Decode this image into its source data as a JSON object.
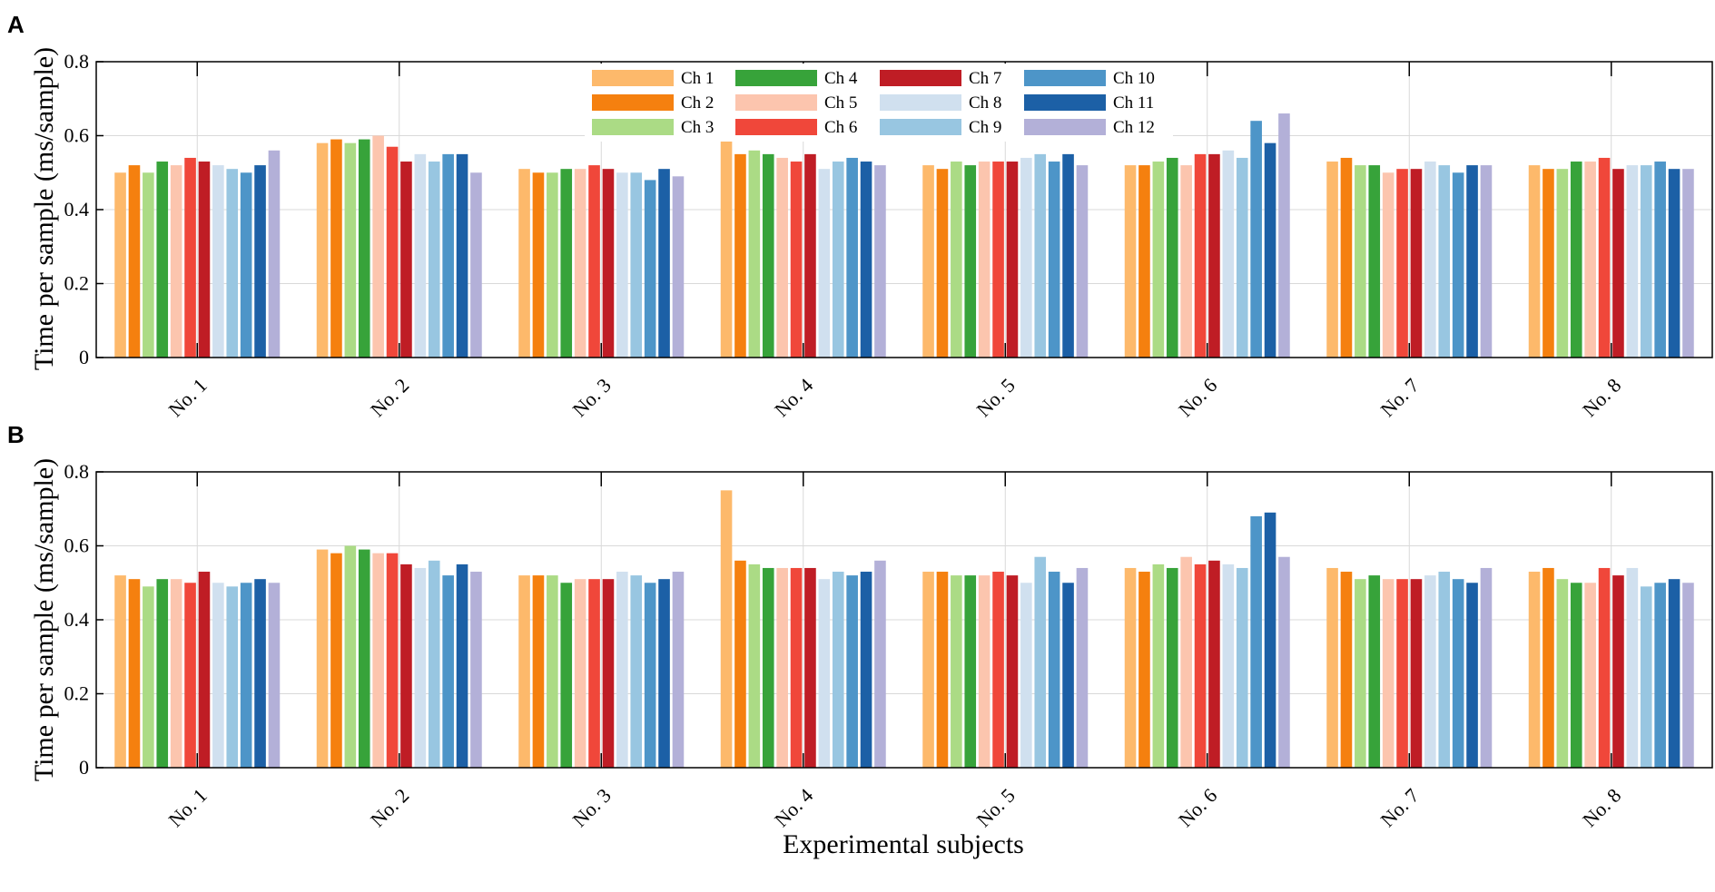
{
  "xlabel": "Experimental subjects",
  "series_colors": [
    "#fdb96b",
    "#f5800f",
    "#abdb85",
    "#37a33a",
    "#fcc5ae",
    "#f0473a",
    "#bf1d25",
    "#d0e0ef",
    "#98c6e1",
    "#4d95c8",
    "#1c60a6",
    "#b3b0d8"
  ],
  "chart_data": [
    {
      "type": "bar",
      "panel": "A",
      "title": "",
      "xlabel": "",
      "ylabel": "Time per sample (ms/sample)",
      "ylim": [
        0,
        0.8
      ],
      "yticks": [
        "0",
        "0.2",
        "0.4",
        "0.6",
        "0.8"
      ],
      "grid": true,
      "legend_position": "top",
      "categories": [
        "No. 1",
        "No. 2",
        "No. 3",
        "No. 4",
        "No. 5",
        "No. 6",
        "No. 7",
        "No. 8"
      ],
      "series": [
        {
          "name": "Ch 1",
          "values": [
            0.5,
            0.58,
            0.51,
            0.61,
            0.52,
            0.52,
            0.53,
            0.52
          ]
        },
        {
          "name": "Ch 2",
          "values": [
            0.52,
            0.59,
            0.5,
            0.55,
            0.51,
            0.52,
            0.54,
            0.51
          ]
        },
        {
          "name": "Ch 3",
          "values": [
            0.5,
            0.58,
            0.5,
            0.56,
            0.53,
            0.53,
            0.52,
            0.51
          ]
        },
        {
          "name": "Ch 4",
          "values": [
            0.53,
            0.59,
            0.51,
            0.55,
            0.52,
            0.54,
            0.52,
            0.53
          ]
        },
        {
          "name": "Ch 5",
          "values": [
            0.52,
            0.6,
            0.51,
            0.54,
            0.53,
            0.52,
            0.5,
            0.53
          ]
        },
        {
          "name": "Ch 6",
          "values": [
            0.54,
            0.57,
            0.52,
            0.53,
            0.53,
            0.55,
            0.51,
            0.54
          ]
        },
        {
          "name": "Ch 7",
          "values": [
            0.53,
            0.53,
            0.51,
            0.55,
            0.53,
            0.55,
            0.51,
            0.51
          ]
        },
        {
          "name": "Ch 8",
          "values": [
            0.52,
            0.55,
            0.5,
            0.51,
            0.54,
            0.56,
            0.53,
            0.52
          ]
        },
        {
          "name": "Ch 9",
          "values": [
            0.51,
            0.53,
            0.5,
            0.53,
            0.55,
            0.54,
            0.52,
            0.52
          ]
        },
        {
          "name": "Ch 10",
          "values": [
            0.5,
            0.55,
            0.48,
            0.54,
            0.53,
            0.64,
            0.5,
            0.53
          ]
        },
        {
          "name": "Ch 11",
          "values": [
            0.52,
            0.55,
            0.51,
            0.53,
            0.55,
            0.58,
            0.52,
            0.51
          ]
        },
        {
          "name": "Ch 12",
          "values": [
            0.56,
            0.5,
            0.49,
            0.52,
            0.52,
            0.66,
            0.52,
            0.51
          ]
        }
      ]
    },
    {
      "type": "bar",
      "panel": "B",
      "title": "",
      "xlabel": "Experimental subjects",
      "ylabel": "Time per sample (ms/sample)",
      "ylim": [
        0,
        0.8
      ],
      "yticks": [
        "0",
        "0.2",
        "0.4",
        "0.6",
        "0.8"
      ],
      "grid": true,
      "categories": [
        "No. 1",
        "No. 2",
        "No. 3",
        "No. 4",
        "No. 5",
        "No. 6",
        "No. 7",
        "No. 8"
      ],
      "series": [
        {
          "name": "Ch 1",
          "values": [
            0.52,
            0.59,
            0.52,
            0.75,
            0.53,
            0.54,
            0.54,
            0.53
          ]
        },
        {
          "name": "Ch 2",
          "values": [
            0.51,
            0.58,
            0.52,
            0.56,
            0.53,
            0.53,
            0.53,
            0.54
          ]
        },
        {
          "name": "Ch 3",
          "values": [
            0.49,
            0.6,
            0.52,
            0.55,
            0.52,
            0.55,
            0.51,
            0.51
          ]
        },
        {
          "name": "Ch 4",
          "values": [
            0.51,
            0.59,
            0.5,
            0.54,
            0.52,
            0.54,
            0.52,
            0.5
          ]
        },
        {
          "name": "Ch 5",
          "values": [
            0.51,
            0.58,
            0.51,
            0.54,
            0.52,
            0.57,
            0.51,
            0.5
          ]
        },
        {
          "name": "Ch 6",
          "values": [
            0.5,
            0.58,
            0.51,
            0.54,
            0.53,
            0.55,
            0.51,
            0.54
          ]
        },
        {
          "name": "Ch 7",
          "values": [
            0.53,
            0.55,
            0.51,
            0.54,
            0.52,
            0.56,
            0.51,
            0.52
          ]
        },
        {
          "name": "Ch 8",
          "values": [
            0.5,
            0.54,
            0.53,
            0.51,
            0.5,
            0.55,
            0.52,
            0.54
          ]
        },
        {
          "name": "Ch 9",
          "values": [
            0.49,
            0.56,
            0.52,
            0.53,
            0.57,
            0.54,
            0.53,
            0.49
          ]
        },
        {
          "name": "Ch 10",
          "values": [
            0.5,
            0.52,
            0.5,
            0.52,
            0.53,
            0.68,
            0.51,
            0.5
          ]
        },
        {
          "name": "Ch 11",
          "values": [
            0.51,
            0.55,
            0.51,
            0.53,
            0.5,
            0.69,
            0.5,
            0.51
          ]
        },
        {
          "name": "Ch 12",
          "values": [
            0.5,
            0.53,
            0.53,
            0.56,
            0.54,
            0.57,
            0.54,
            0.5
          ]
        }
      ]
    }
  ]
}
